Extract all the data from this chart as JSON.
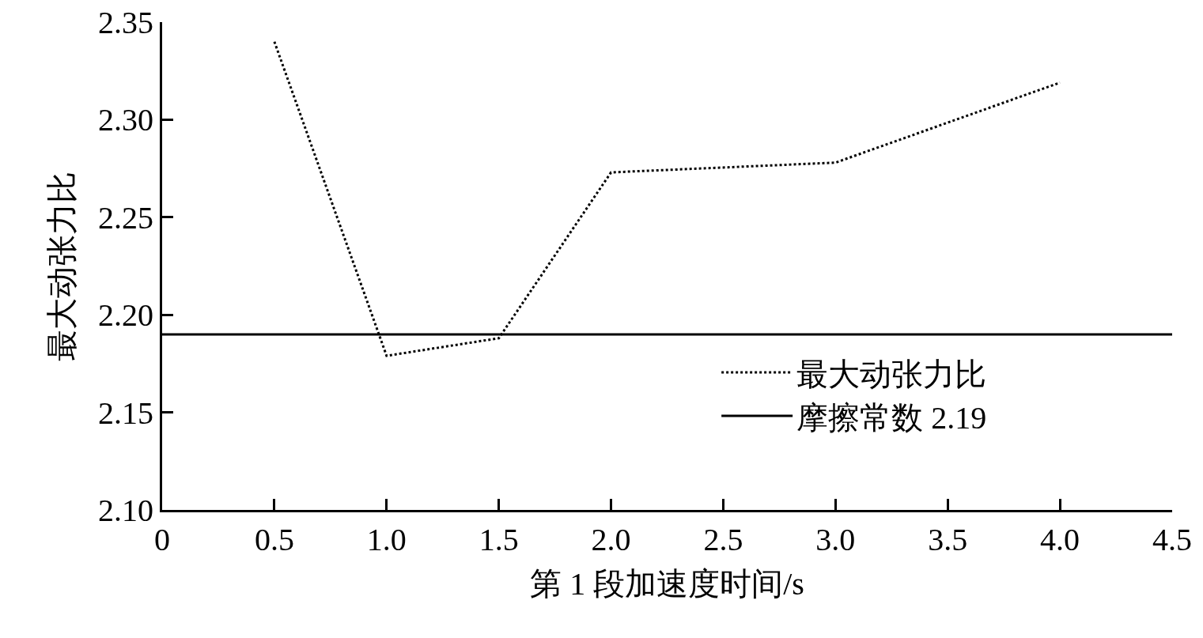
{
  "chart_data": {
    "type": "line",
    "xlabel": "第 1 段加速度时间/s",
    "ylabel": "最大动张力比",
    "xlim": [
      0,
      4.5
    ],
    "xticks": [
      0,
      0.5,
      {
        "value": 1,
        "label": "1.0"
      },
      1.5,
      {
        "value": 2,
        "label": "2.0"
      },
      2.5,
      {
        "value": 3,
        "label": "3.0"
      },
      3.5,
      {
        "value": 4,
        "label": "4.0"
      },
      4.5
    ],
    "ylim": [
      2.1,
      2.35
    ],
    "yticks": [
      {
        "value": 2.1,
        "label": "2.10"
      },
      2.15,
      {
        "value": 2.2,
        "label": "2.20"
      },
      2.25,
      {
        "value": 2.3,
        "label": "2.30"
      },
      2.35
    ],
    "grid": false,
    "legend": "bottom right",
    "marker": "none",
    "series": [
      {
        "name": "最大动张力比",
        "color": "#000000",
        "line_style": "dotted",
        "x": [
          0.5,
          1.0,
          1.5,
          2.0,
          3.0,
          4.0
        ],
        "values": [
          2.34,
          2.179,
          2.188,
          2.273,
          2.278,
          2.319
        ]
      },
      {
        "name": "摩擦常数 2.19",
        "color": "#000000",
        "line_style": "solid",
        "x": [
          0,
          4.5
        ],
        "values": [
          2.19,
          2.19
        ]
      }
    ]
  }
}
